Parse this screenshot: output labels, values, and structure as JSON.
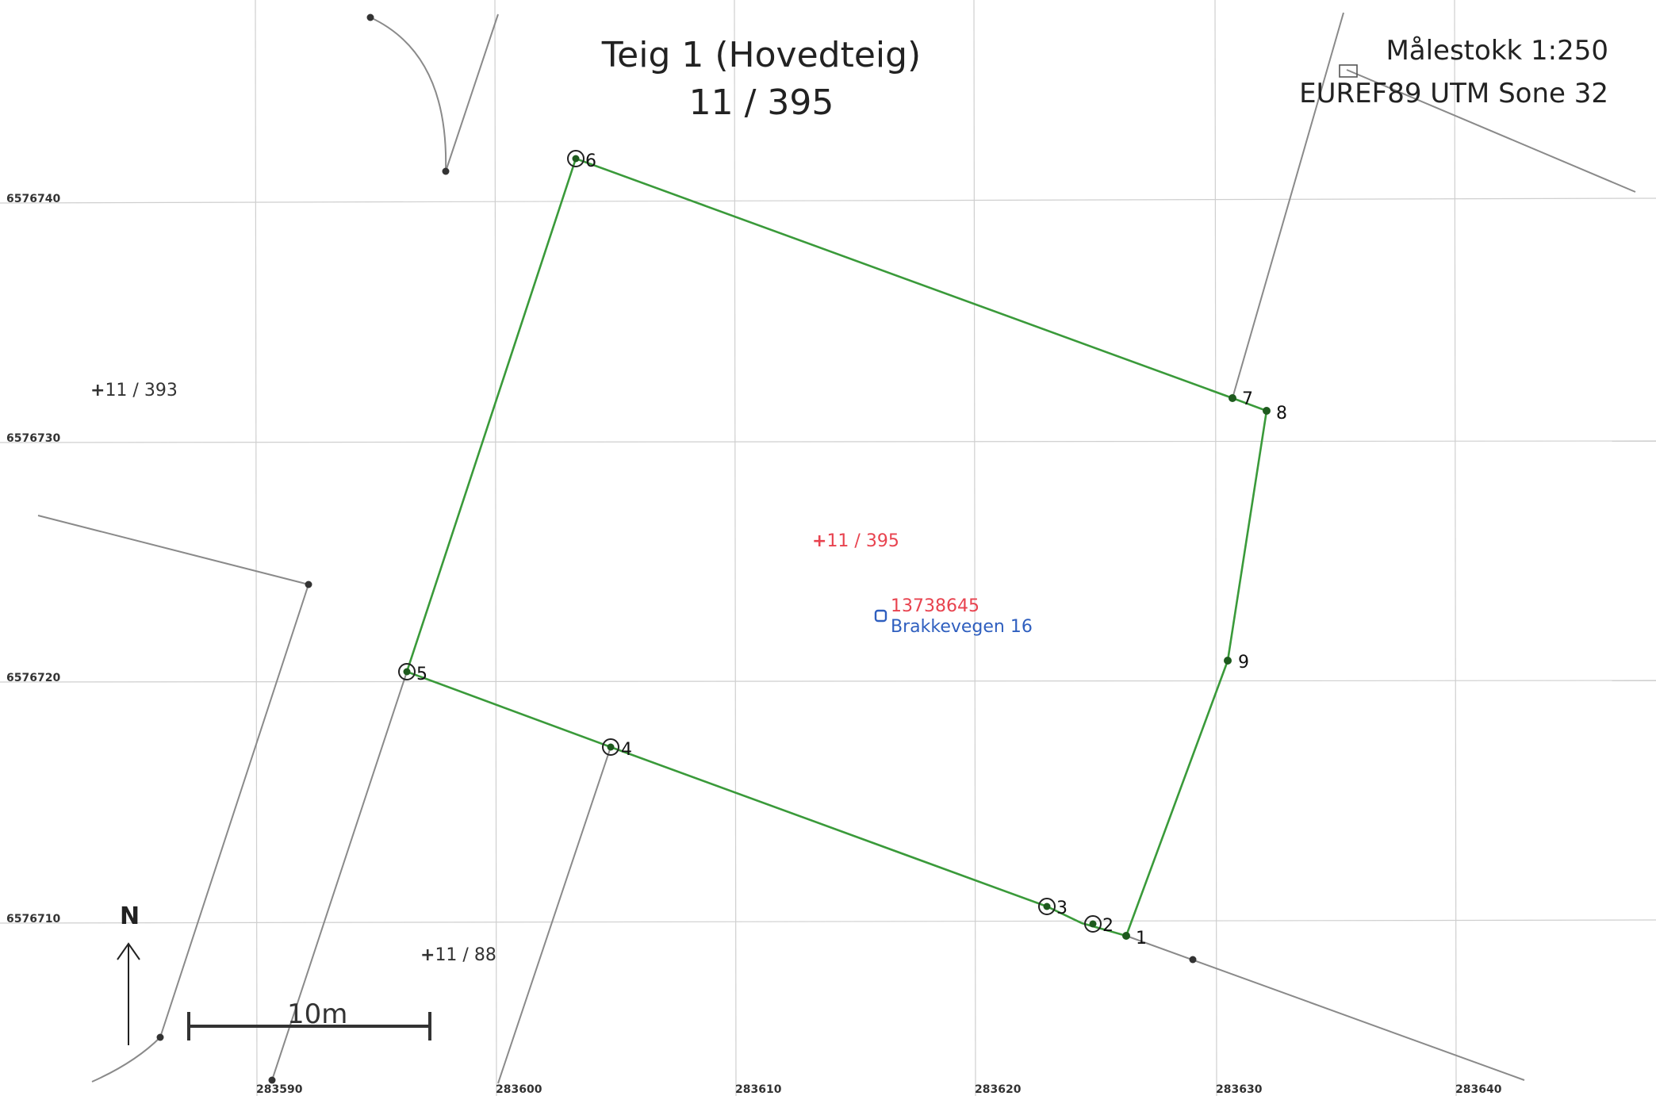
{
  "title": {
    "line1": "Teig 1 (Hovedteig)",
    "line2": "11 / 395"
  },
  "map_info": {
    "scale": "Målestokk 1:250",
    "crs": "EUREF89 UTM Sone 32"
  },
  "grid": {
    "northings": [
      "6576740",
      "6576730",
      "6576720",
      "6576710"
    ],
    "eastings": [
      "283590",
      "283600",
      "283610",
      "283620",
      "283630",
      "283640"
    ]
  },
  "parcels": {
    "main": "11 / 395",
    "neighbor_west": "11 / 393",
    "neighbor_south": "11 / 88"
  },
  "address": {
    "id": "13738645",
    "name": "Brakkevegen 16"
  },
  "boundary_points": [
    "1",
    "2",
    "3",
    "4",
    "5",
    "6",
    "7",
    "8",
    "9"
  ],
  "north_arrow": "N",
  "scale_bar": "10m",
  "colors": {
    "boundary": "#3a9a3a",
    "other_lines": "#8a8a8a",
    "main_parcel_label": "#e8434f",
    "address_label": "#2f5fbf"
  }
}
